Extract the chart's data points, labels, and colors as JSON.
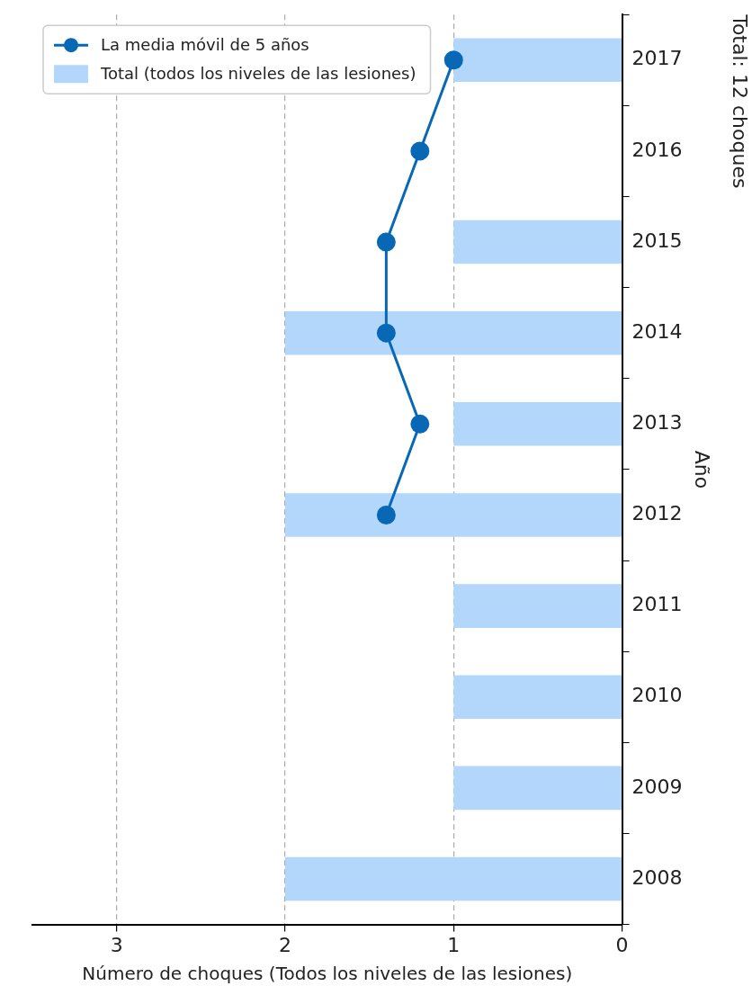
{
  "chart_data": {
    "type": "bar",
    "orientation": "horizontal",
    "xlabel": "Número de choques (Todos los niveles de las lesiones)",
    "ylabel": "Año",
    "categories": [
      "2017",
      "2016",
      "2015",
      "2014",
      "2013",
      "2012",
      "2011",
      "2010",
      "2009",
      "2008"
    ],
    "series": [
      {
        "name": "La media móvil de 5 años",
        "type": "line",
        "color": "#0868b5",
        "marker": "circle",
        "values": [
          1.0,
          1.2,
          1.4,
          1.4,
          1.2,
          1.4,
          null,
          null,
          null,
          null
        ]
      },
      {
        "name": "Total (todos los niveles de las lesiones)",
        "color": "#b3d7fb",
        "values": [
          1,
          0,
          1,
          2,
          1,
          2,
          1,
          1,
          1,
          2
        ]
      }
    ],
    "xlim": [
      3.5,
      0
    ],
    "xticks": [
      0,
      1,
      2,
      3
    ],
    "grid": "x",
    "legend": "top left",
    "annotations": [
      "Total: 12 choques"
    ]
  }
}
